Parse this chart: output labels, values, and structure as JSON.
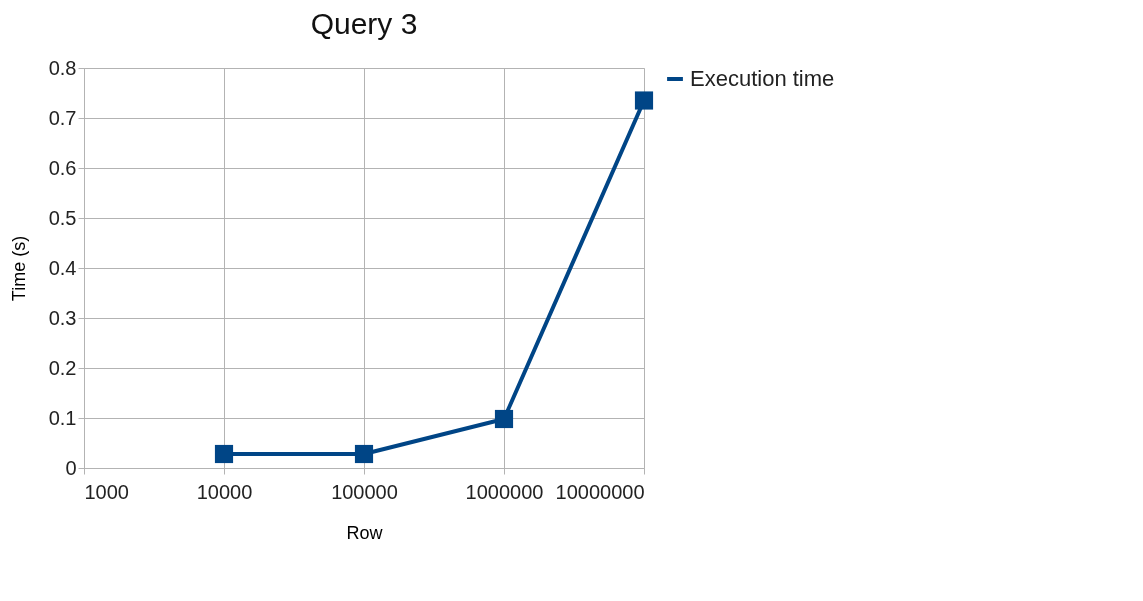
{
  "chart_data": {
    "type": "line",
    "title": "Query 3",
    "xlabel": "Row",
    "ylabel": "Time (s)",
    "x": [
      10000,
      100000,
      1000000,
      10000000
    ],
    "series": [
      {
        "name": "Execution time",
        "color": "#004586",
        "values": [
          0.028,
          0.028,
          0.098,
          0.735
        ]
      }
    ],
    "log": "x",
    "xlim": [
      1000,
      10000000
    ],
    "xticks": [
      1000,
      10000,
      100000,
      1000000,
      10000000
    ],
    "ylim": [
      0,
      0.8
    ],
    "yticks": [
      0,
      0.1,
      0.2,
      0.3,
      0.4,
      0.5,
      0.6,
      0.7,
      0.8
    ],
    "grid": true,
    "legend": "right",
    "marker": "square",
    "line_style": "solid"
  }
}
